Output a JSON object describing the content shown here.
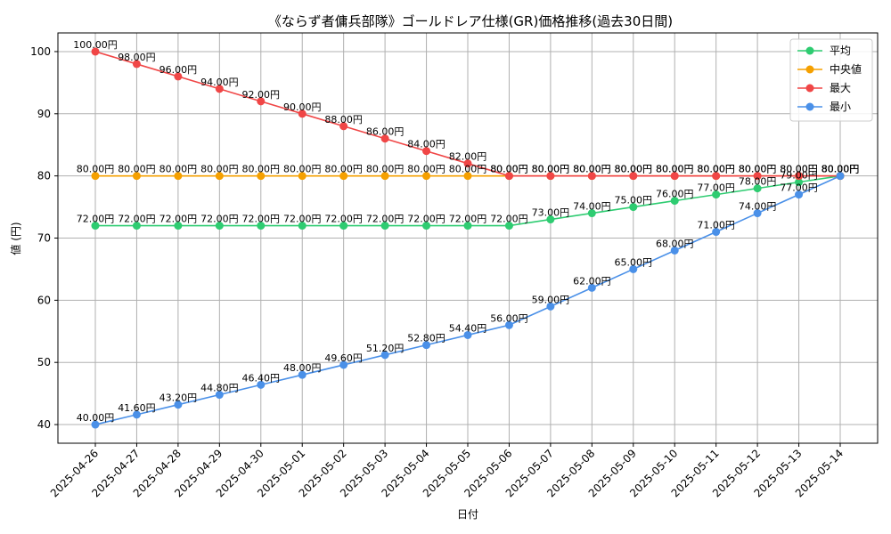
{
  "chart_data": {
    "type": "line",
    "title": "《ならず者傭兵部隊》ゴールドレア仕様(GR)価格推移(過去30日間)",
    "xlabel": "日付",
    "ylabel": "値 (円)",
    "ylim": [
      37,
      103
    ],
    "yticks": [
      40,
      50,
      60,
      70,
      80,
      90,
      100
    ],
    "grid": true,
    "legend_position": "top-right",
    "categories": [
      "2025-04-26",
      "2025-04-27",
      "2025-04-28",
      "2025-04-29",
      "2025-04-30",
      "2025-05-01",
      "2025-05-02",
      "2025-05-03",
      "2025-05-04",
      "2025-05-05",
      "2025-05-06",
      "2025-05-07",
      "2025-05-08",
      "2025-05-09",
      "2025-05-10",
      "2025-05-11",
      "2025-05-12",
      "2025-05-13",
      "2025-05-14"
    ],
    "label_suffix": "円",
    "series": [
      {
        "name": "平均",
        "color": "#2ecc71",
        "values": [
          72,
          72,
          72,
          72,
          72,
          72,
          72,
          72,
          72,
          72,
          72,
          73,
          74,
          75,
          76,
          77,
          78,
          79,
          80
        ]
      },
      {
        "name": "中央値",
        "color": "#f5a000",
        "values": [
          80,
          80,
          80,
          80,
          80,
          80,
          80,
          80,
          80,
          80,
          80,
          80,
          80,
          80,
          80,
          80,
          80,
          80,
          80
        ]
      },
      {
        "name": "最大",
        "color": "#f04646",
        "values": [
          100,
          98,
          96,
          94,
          92,
          90,
          88,
          86,
          84,
          82,
          80,
          80,
          80,
          80,
          80,
          80,
          80,
          80,
          80
        ]
      },
      {
        "name": "最小",
        "color": "#4a90e8",
        "values": [
          40,
          41.6,
          43.2,
          44.8,
          46.4,
          48,
          49.6,
          51.2,
          52.8,
          54.4,
          56,
          59,
          62,
          65,
          68,
          71,
          74,
          77,
          80
        ]
      }
    ]
  }
}
